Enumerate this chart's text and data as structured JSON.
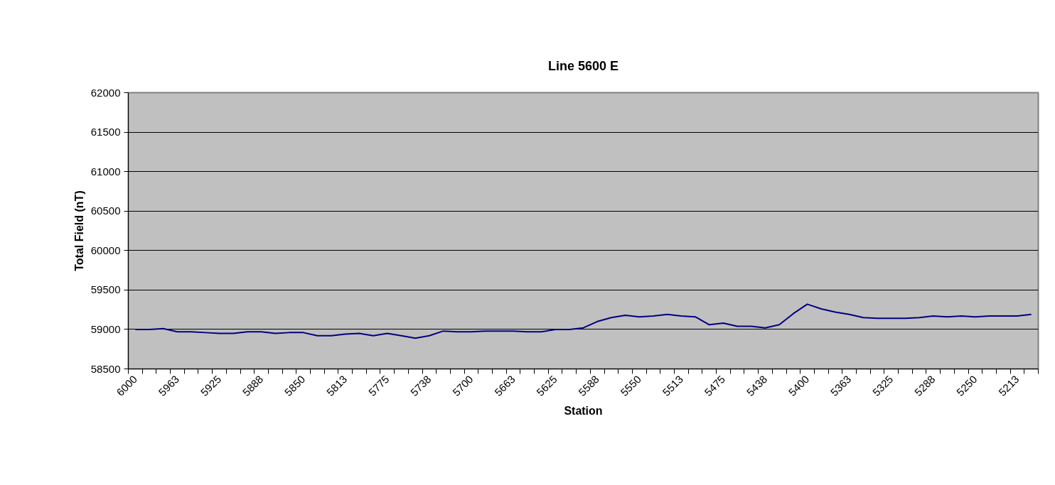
{
  "chart_data": {
    "type": "line",
    "title": "Line 5600 E",
    "xlabel": "Station",
    "ylabel": "Total Field (nT)",
    "categories": [
      "6000",
      null,
      null,
      "5963",
      null,
      null,
      "5925",
      null,
      null,
      "5888",
      null,
      null,
      "5850",
      null,
      null,
      "5813",
      null,
      null,
      "5775",
      null,
      null,
      "5738",
      null,
      null,
      "5700",
      null,
      null,
      "5663",
      null,
      null,
      "5625",
      null,
      null,
      "5588",
      null,
      null,
      "5550",
      null,
      null,
      "5513",
      null,
      null,
      "5475",
      null,
      null,
      "5438",
      null,
      null,
      "5400",
      null,
      null,
      "5363",
      null,
      null,
      "5325",
      null,
      null,
      "5288",
      null,
      null,
      "5250",
      null,
      null,
      "5213",
      null
    ],
    "series": [
      {
        "color": "#000080",
        "values": [
          59000,
          59000,
          59010,
          58970,
          58970,
          58960,
          58950,
          58950,
          58970,
          58970,
          58950,
          58960,
          58960,
          58920,
          58920,
          58940,
          58950,
          58920,
          58950,
          58920,
          58890,
          58920,
          58980,
          58970,
          58970,
          58980,
          58980,
          58980,
          58970,
          58970,
          59000,
          59000,
          59020,
          59100,
          59150,
          59180,
          59160,
          59170,
          59190,
          59170,
          59160,
          59060,
          59080,
          59040,
          59040,
          59020,
          59060,
          59200,
          59320,
          59260,
          59220,
          59190,
          59150,
          59140,
          59140,
          59140,
          59150,
          59170,
          59160,
          59170,
          59160,
          59170,
          59170,
          59170,
          59190
        ]
      }
    ],
    "ylim": [
      58500,
      62000
    ],
    "yticks": [
      58500,
      59000,
      59500,
      60000,
      60500,
      61000,
      61500,
      62000
    ],
    "grid": "y",
    "marker": "none",
    "line_style": "solid"
  }
}
